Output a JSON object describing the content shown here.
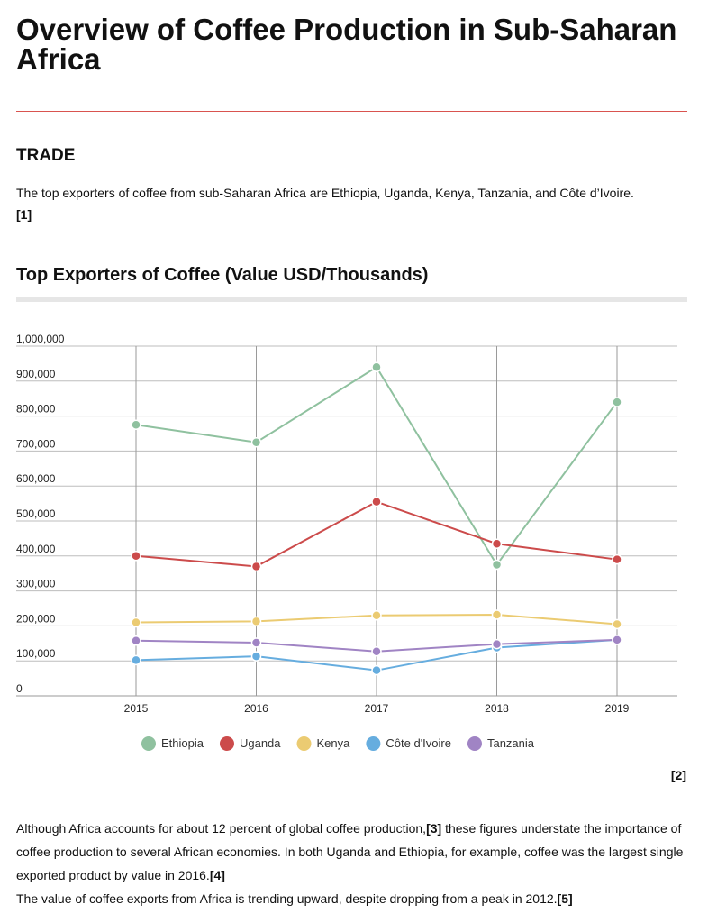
{
  "page": {
    "title": "Overview of Coffee Production in Sub-Saharan Africa",
    "trade_heading": "TRADE",
    "trade_text": "The top exporters of coffee from sub-Saharan Africa are Ethiopia, Uganda, Kenya, Tanzania, and Côte d’Ivoire.",
    "trade_ref": "[1]",
    "chart_heading": "Top Exporters of Coffee (Value USD/Thousands)",
    "chart_ref": "[2]",
    "para1_a": "Although Africa accounts for about 12 percent of global coffee production,",
    "para1_ref1": "[3]",
    "para1_b": " these figures understate the importance of coffee production to several African economies. In both Uganda and Ethiopia, for example, coffee was the largest single exported product by value in 2016.",
    "para1_ref2": "[4]",
    "para2": "The value of coffee exports from Africa is trending upward, despite dropping from a peak in 2012.",
    "para2_ref": "[5]"
  },
  "chart_data": {
    "type": "line",
    "title": "Top Exporters of Coffee (Value USD/Thousands)",
    "x": [
      "2015",
      "2016",
      "2017",
      "2018",
      "2019"
    ],
    "ylim": [
      0,
      1000000
    ],
    "yticks": [
      0,
      100000,
      200000,
      300000,
      400000,
      500000,
      600000,
      700000,
      800000,
      900000,
      1000000
    ],
    "ytick_labels": [
      "0",
      "100,000",
      "200,000",
      "300,000",
      "400,000",
      "500,000",
      "600,000",
      "700,000",
      "800,000",
      "900,000",
      "1,000,000"
    ],
    "grid": true,
    "legend_position": "bottom",
    "series": [
      {
        "name": "Ethiopia",
        "color": "#8fc19f",
        "values": [
          775000,
          725000,
          940000,
          375000,
          840000
        ]
      },
      {
        "name": "Uganda",
        "color": "#cc4b4b",
        "values": [
          400000,
          370000,
          555000,
          435000,
          390000
        ]
      },
      {
        "name": "Kenya",
        "color": "#ebcb72",
        "values": [
          210000,
          213000,
          230000,
          232000,
          205000
        ]
      },
      {
        "name": "Côte d'Ivoire",
        "color": "#66addf",
        "values": [
          102000,
          113000,
          73000,
          138000,
          160000
        ]
      },
      {
        "name": "Tanzania",
        "color": "#a084c4",
        "values": [
          158000,
          152000,
          127000,
          148000,
          160000
        ]
      }
    ]
  }
}
